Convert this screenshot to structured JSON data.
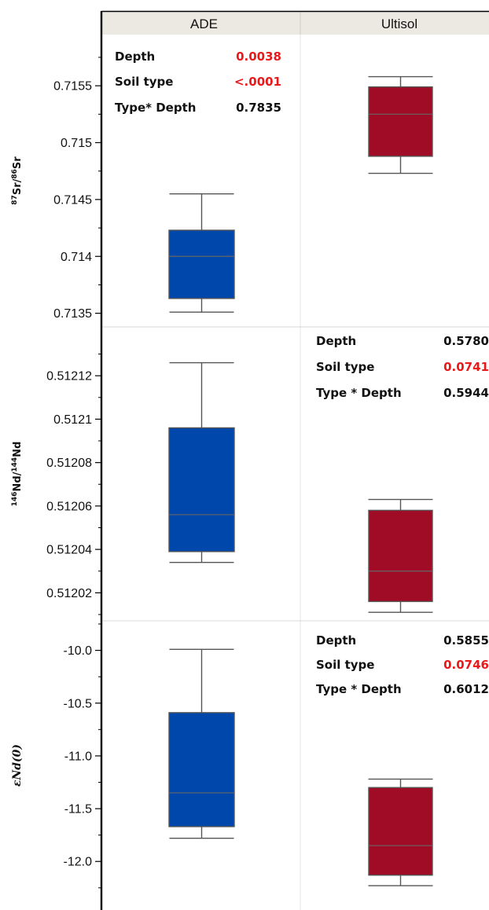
{
  "chart_data": {
    "type": "box",
    "groups": [
      "ADE",
      "Ultisol"
    ],
    "colors": {
      "ADE": "#0047ab",
      "Ultisol": "#a00b25"
    },
    "panels": [
      {
        "id": "sr",
        "ylabel": {
          "sup1": "87",
          "base1": "Sr/",
          "sup2": "86",
          "base2": "Sr"
        },
        "ylim": [
          0.71338,
          0.71595
        ],
        "yticks": [
          0.7135,
          0.714,
          0.7145,
          0.715,
          0.7155
        ],
        "ytick_labels": [
          "0.7135",
          "0.714",
          "0.7145",
          "0.715",
          "0.7155"
        ],
        "boxes": [
          {
            "group": "ADE",
            "min": 0.71351,
            "q1": 0.71363,
            "median": 0.714,
            "q3": 0.71423,
            "max": 0.71455
          },
          {
            "group": "Ultisol",
            "min": 0.71473,
            "q1": 0.71488,
            "median": 0.71525,
            "q3": 0.71549,
            "max": 0.71558
          }
        ],
        "stats": {
          "column": "ADE",
          "rows": [
            {
              "label": "Depth",
              "value": "0.0038",
              "highlight": true
            },
            {
              "label": "Soil type",
              "value": "<.0001",
              "highlight": true
            },
            {
              "label": "Type* Depth",
              "value": "0.7835",
              "highlight": false
            }
          ]
        }
      },
      {
        "id": "nd",
        "ylabel": {
          "sup1": "146",
          "base1": "Nd/",
          "sup2": "144",
          "base2": "Nd"
        },
        "ylim": [
          0.5120071,
          0.5121425
        ],
        "yticks": [
          0.51202,
          0.51204,
          0.51206,
          0.51208,
          0.5121,
          0.51212
        ],
        "ytick_labels": [
          "0.51202",
          "0.51204",
          "0.51206",
          "0.51208",
          "0.5121",
          "0.51212"
        ],
        "boxes": [
          {
            "group": "ADE",
            "min": 0.512034,
            "q1": 0.512039,
            "median": 0.512056,
            "q3": 0.512096,
            "max": 0.512126
          },
          {
            "group": "Ultisol",
            "min": 0.512011,
            "q1": 0.512016,
            "median": 0.51203,
            "q3": 0.512058,
            "max": 0.512063
          }
        ],
        "stats": {
          "column": "Ultisol",
          "rows": [
            {
              "label": "Depth",
              "value": "0.5780",
              "highlight": false
            },
            {
              "label": "Soil type",
              "value": "0.0741",
              "highlight": true
            },
            {
              "label": "Type * Depth",
              "value": "0.5944",
              "highlight": false
            }
          ]
        }
      },
      {
        "id": "end",
        "ylabel": {
          "text": "εNd(0)"
        },
        "ylim": [
          -12.46,
          -9.72
        ],
        "yticks": [
          -12.0,
          -11.5,
          -11.0,
          -10.5,
          -10.0
        ],
        "ytick_labels": [
          "-12.0",
          "-11.5",
          "-11.0",
          "-10.5",
          "-10.0"
        ],
        "boxes": [
          {
            "group": "ADE",
            "min": -11.78,
            "q1": -11.67,
            "median": -11.35,
            "q3": -10.59,
            "max": -9.99
          },
          {
            "group": "Ultisol",
            "min": -12.23,
            "q1": -12.13,
            "median": -11.85,
            "q3": -11.3,
            "max": -11.22
          }
        ],
        "stats": {
          "column": "Ultisol",
          "rows": [
            {
              "label": "Depth",
              "value": "0.5855",
              "highlight": false
            },
            {
              "label": "Soil type",
              "value": "0.0746",
              "highlight": true
            },
            {
              "label": "Type * Depth",
              "value": "0.6012",
              "highlight": false
            }
          ]
        }
      }
    ]
  }
}
